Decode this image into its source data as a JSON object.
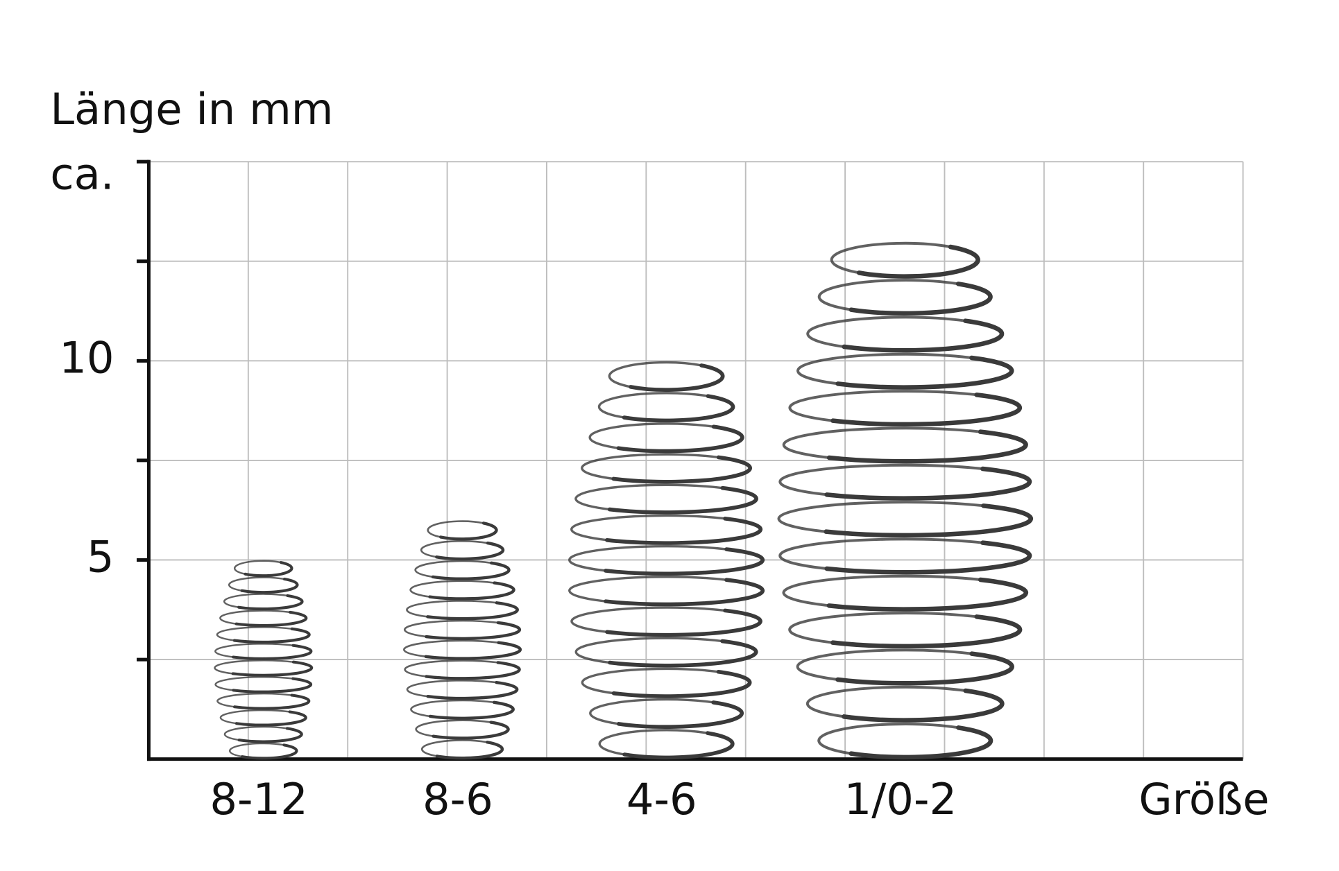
{
  "chart_data": {
    "type": "spring",
    "y_label": [
      "Länge in mm",
      "ca."
    ],
    "x_label": "Größe",
    "categories": [
      "8-12",
      "8-6",
      "4-6",
      "1/0-2"
    ],
    "values": [
      5,
      6,
      10,
      13
    ],
    "color": "#3a3a3a",
    "ylim": [
      0,
      15
    ],
    "yticks": [
      5,
      10
    ],
    "minor_yticks": [
      2.5,
      7.5,
      12.5,
      15
    ],
    "grid": true
  }
}
